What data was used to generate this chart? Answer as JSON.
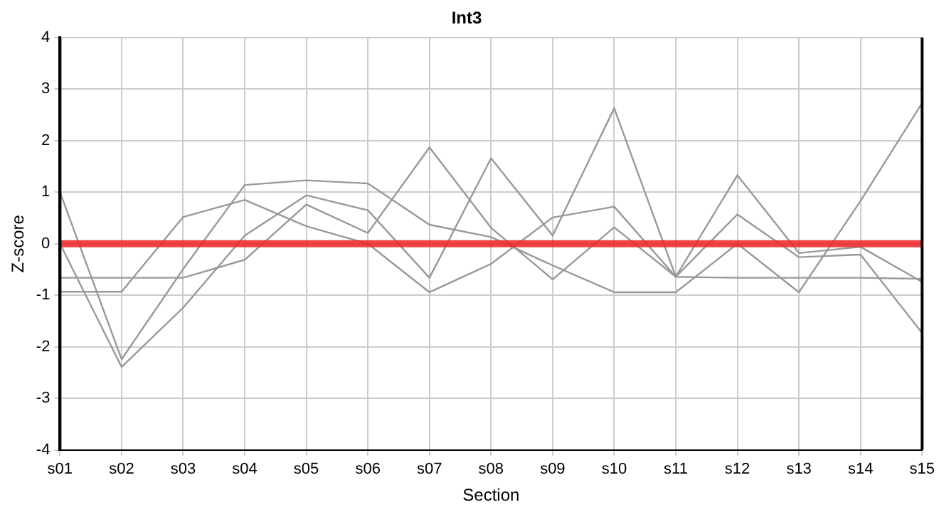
{
  "chart_data": {
    "type": "line",
    "title": "Int3",
    "xlabel": "Section",
    "ylabel": "Z-score",
    "categories": [
      "s01",
      "s02",
      "s03",
      "s04",
      "s05",
      "s06",
      "s07",
      "s08",
      "s09",
      "s10",
      "s11",
      "s12",
      "s13",
      "s14",
      "s15"
    ],
    "series": [
      {
        "color": "#999999",
        "values": [
          1.0,
          -2.24,
          -0.49,
          1.14,
          1.23,
          1.17,
          0.37,
          0.13,
          -0.42,
          -0.94,
          -0.94,
          0,
          -0.94,
          0.83,
          2.73
        ]
      },
      {
        "color": "#999999",
        "values": [
          0,
          -2.39,
          -1.24,
          0.16,
          0.94,
          0.65,
          -0.66,
          1.66,
          0.16,
          2.63,
          -0.64,
          1.33,
          -0.18,
          -0.06,
          -0.74
        ]
      },
      {
        "color": "#999999",
        "values": [
          -0.93,
          -0.93,
          0.52,
          0.85,
          0.34,
          0.0,
          -0.94,
          -0.39,
          0.51,
          0.72,
          -0.64,
          0.57,
          -0.26,
          -0.21,
          -1.73
        ]
      },
      {
        "color": "#999999",
        "values": [
          -0.66,
          -0.66,
          -0.66,
          -0.31,
          0.76,
          0.21,
          1.87,
          0.31,
          -0.69,
          0.32,
          -0.64,
          -0.66,
          -0.66,
          -0.66,
          -0.68
        ]
      }
    ],
    "ylim": [
      -4,
      4
    ],
    "yticks": [
      -4,
      -3,
      -2,
      -1,
      0,
      1,
      2,
      3,
      4
    ],
    "ref_lines": [
      {
        "axis": "y",
        "value": 0,
        "color": "#ee2222"
      }
    ],
    "grid": true,
    "legend": false,
    "marker": "none",
    "line_style": "solid"
  }
}
